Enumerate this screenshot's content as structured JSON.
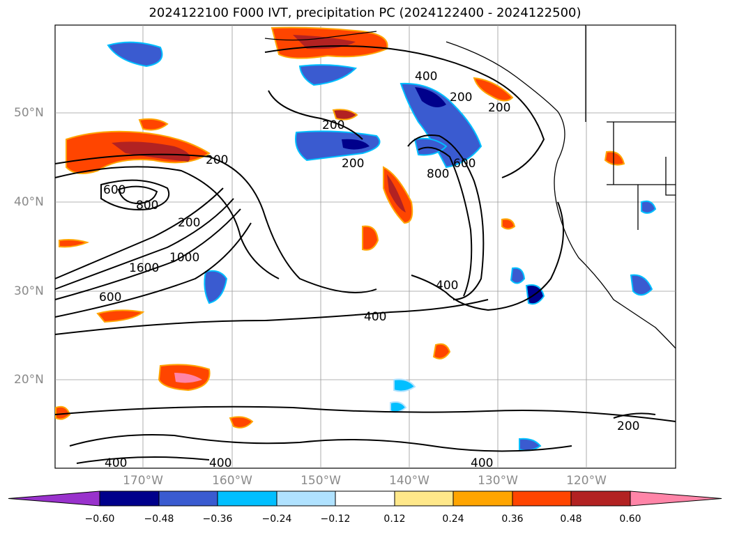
{
  "title": "2024122100 F000 IVT, precipitation PC (2024122400 - 2024122500)",
  "lat_labels": [
    "50°N",
    "40°N",
    "30°N",
    "20°N"
  ],
  "lon_labels": [
    "170°W",
    "160°W",
    "150°W",
    "140°W",
    "130°W",
    "120°W"
  ],
  "contour_labels": [
    "400",
    "200",
    "200",
    "200",
    "200",
    "200",
    "600",
    "600",
    "800",
    "800",
    "1000",
    "1600",
    "600",
    "400",
    "400",
    "200",
    "400",
    "400",
    "400",
    "200"
  ],
  "colorbar": {
    "ticks": [
      "−0.60",
      "−0.48",
      "−0.36",
      "−0.24",
      "−0.12",
      "0.12",
      "0.24",
      "0.36",
      "0.48",
      "0.60"
    ],
    "colors": [
      "#9932cc",
      "#00008b",
      "#3a5bd0",
      "#00bfff",
      "#b0e2ff",
      "#ffffff",
      "#ffe88a",
      "#ffa500",
      "#ff4500",
      "#b22222",
      "#ff85a8"
    ]
  },
  "colors": {
    "contour": "#000000",
    "grid": "#9a9a9a",
    "coast": "#000000"
  }
}
